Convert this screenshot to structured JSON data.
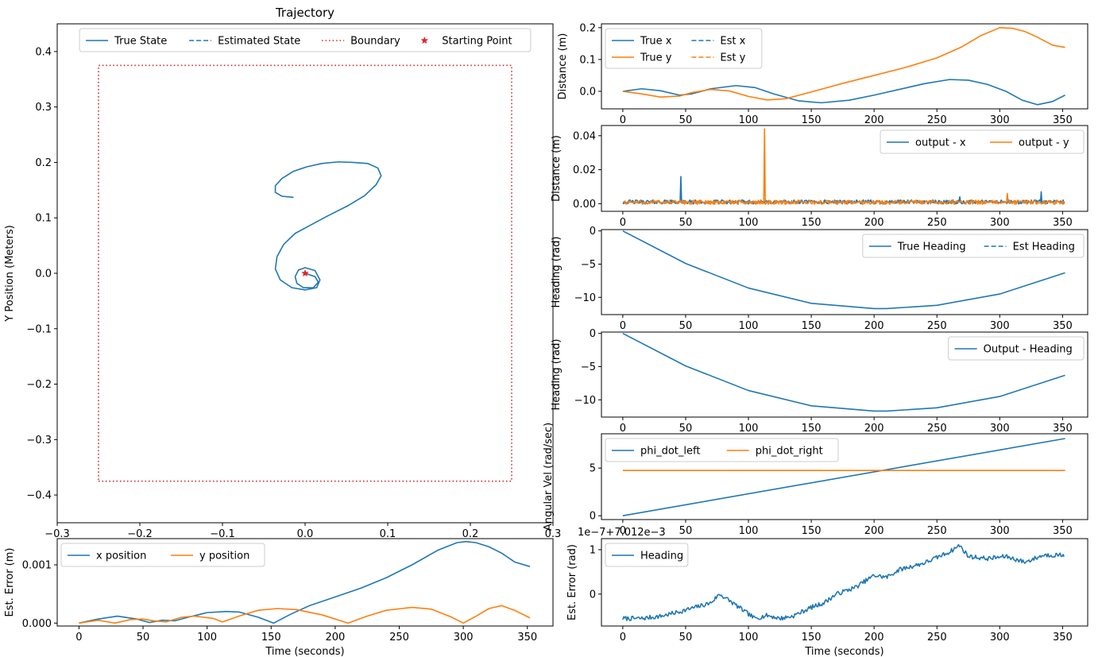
{
  "colors": {
    "blue": "#1f77b4",
    "orange": "#ff7f0e",
    "red": "#d62728",
    "star": "#e3242b"
  },
  "chart_data": [
    {
      "id": "trajectory",
      "type": "line",
      "title": "Trajectory",
      "xlabel": "",
      "ylabel": "Y Position (Meters)",
      "xlim": [
        -0.3,
        0.3
      ],
      "ylim": [
        -0.45,
        0.45
      ],
      "xticks": [
        -0.3,
        -0.2,
        -0.1,
        0.0,
        0.1,
        0.2,
        0.3
      ],
      "xtick_labels": [
        "−0.3",
        "−0.2",
        "−0.1",
        "0.0",
        "0.1",
        "0.2",
        "0.3"
      ],
      "yticks": [
        -0.4,
        -0.3,
        -0.2,
        -0.1,
        0.0,
        0.1,
        0.2,
        0.3,
        0.4
      ],
      "ytick_labels": [
        "−0.4",
        "−0.3",
        "−0.2",
        "−0.1",
        "0.0",
        "0.1",
        "0.2",
        "0.3",
        "0.4"
      ],
      "legend_loc": "top",
      "legend": [
        {
          "label": "True State",
          "style": "solid",
          "color": "#1f77b4"
        },
        {
          "label": "Estimated State",
          "style": "dashed",
          "color": "#1f77b4"
        },
        {
          "label": "Boundary",
          "style": "dotted",
          "color": "#d62728"
        },
        {
          "label": "Starting Point",
          "style": "star",
          "color": "#e3242b"
        }
      ],
      "series": [
        {
          "name": "True State",
          "color": "#1f77b4",
          "style": "solid",
          "x": [
            0.0,
            0.012,
            0.016,
            0.01,
            -0.002,
            -0.01,
            -0.012,
            -0.008,
            0.0,
            0.012,
            0.018,
            0.014,
            0.0,
            -0.016,
            -0.03,
            -0.036,
            -0.034,
            -0.026,
            -0.012,
            0.008,
            0.028,
            0.052,
            0.072,
            0.086,
            0.092,
            0.088,
            0.076,
            0.058,
            0.04,
            0.02,
            0.002,
            -0.014,
            -0.028,
            -0.036,
            -0.036,
            -0.028,
            -0.014
          ],
          "y": [
            0.0,
            -0.006,
            -0.016,
            -0.026,
            -0.026,
            -0.018,
            -0.006,
            0.006,
            0.01,
            0.005,
            -0.012,
            -0.026,
            -0.03,
            -0.026,
            -0.012,
            0.008,
            0.03,
            0.052,
            0.072,
            0.088,
            0.104,
            0.122,
            0.14,
            0.16,
            0.176,
            0.19,
            0.198,
            0.2,
            0.201,
            0.198,
            0.192,
            0.184,
            0.171,
            0.158,
            0.146,
            0.139,
            0.137
          ]
        },
        {
          "name": "Boundary",
          "color": "#d62728",
          "style": "dotted",
          "x": [
            -0.25,
            0.25,
            0.25,
            -0.25,
            -0.25
          ],
          "y": [
            -0.375,
            -0.375,
            0.375,
            0.375,
            -0.375
          ]
        }
      ],
      "points": [
        {
          "name": "Starting Point",
          "x": 0.0,
          "y": 0.0,
          "marker": "star",
          "color": "#e3242b"
        }
      ]
    },
    {
      "id": "est-error-xy",
      "type": "line",
      "xlabel": "Time (seconds)",
      "ylabel": "Est. Error (m)",
      "xlim": [
        -17,
        370
      ],
      "ylim": [
        -5e-05,
        0.00145
      ],
      "xticks": [
        0,
        50,
        100,
        150,
        200,
        250,
        300,
        350
      ],
      "xtick_labels": [
        "0",
        "50",
        "100",
        "150",
        "200",
        "250",
        "300",
        "350"
      ],
      "yticks": [
        0.0,
        0.001
      ],
      "ytick_labels": [
        "0.000",
        "0.001"
      ],
      "legend_loc": "upper-left",
      "legend": [
        {
          "label": "x position",
          "style": "solid",
          "color": "#1f77b4"
        },
        {
          "label": "y position",
          "style": "solid",
          "color": "#ff7f0e"
        }
      ],
      "series": [
        {
          "name": "x position",
          "color": "#1f77b4",
          "x": [
            0,
            15,
            30,
            45,
            55,
            65,
            75,
            85,
            100,
            115,
            125,
            140,
            152,
            165,
            180,
            200,
            220,
            240,
            260,
            280,
            295,
            302,
            310,
            320,
            330,
            340,
            352
          ],
          "y": [
            0.0,
            7e-05,
            0.00012,
            7e-05,
            1e-05,
            5e-05,
            4e-05,
            0.0001,
            0.00018,
            0.0002,
            0.00019,
            0.0001,
            0.0,
            0.00015,
            0.0003,
            0.00045,
            0.0006,
            0.00078,
            0.001,
            0.00125,
            0.00138,
            0.0014,
            0.00138,
            0.00131,
            0.0012,
            0.00105,
            0.00097
          ]
        },
        {
          "name": "y position",
          "color": "#ff7f0e",
          "x": [
            0,
            15,
            28,
            40,
            50,
            58,
            68,
            80,
            90,
            105,
            112,
            125,
            140,
            155,
            170,
            190,
            210,
            225,
            240,
            260,
            275,
            290,
            300,
            310,
            320,
            330,
            340,
            352
          ],
          "y": [
            0.0,
            5e-05,
            0.0,
            6e-05,
            7e-05,
            4e-05,
            2e-05,
            0.0001,
            0.00012,
            8e-05,
            2e-05,
            0.00012,
            0.00022,
            0.00025,
            0.00023,
            0.00014,
            0.0,
            0.00012,
            0.00022,
            0.00027,
            0.00024,
            0.00011,
            0.0,
            0.00012,
            0.00025,
            0.0003,
            0.00022,
            9e-05
          ]
        }
      ]
    },
    {
      "id": "distance-true-est",
      "type": "line",
      "xlabel": "",
      "ylabel": "Distance (m)",
      "xlim": [
        -17,
        370
      ],
      "ylim": [
        -0.055,
        0.212
      ],
      "xticks": [
        0,
        50,
        100,
        150,
        200,
        250,
        300,
        350
      ],
      "xtick_labels": [
        "0",
        "50",
        "100",
        "150",
        "200",
        "250",
        "300",
        "350"
      ],
      "yticks": [
        0.0,
        0.1,
        0.2
      ],
      "ytick_labels": [
        "0.0",
        "0.1",
        "0.2"
      ],
      "legend_loc": "upper-left",
      "legend": [
        {
          "label": "True x",
          "style": "solid",
          "color": "#1f77b4"
        },
        {
          "label": "Est x",
          "style": "dashed",
          "color": "#1f77b4"
        },
        {
          "label": "True y",
          "style": "solid",
          "color": "#ff7f0e"
        },
        {
          "label": "Est y",
          "style": "dashed",
          "color": "#ff7f0e"
        }
      ],
      "series": [
        {
          "name": "True x",
          "color": "#1f77b4",
          "x": [
            0,
            15,
            30,
            45,
            55,
            70,
            90,
            105,
            120,
            140,
            158,
            180,
            200,
            220,
            240,
            260,
            275,
            290,
            305,
            318,
            330,
            342,
            352
          ],
          "y": [
            0.0,
            0.008,
            0.002,
            -0.012,
            -0.008,
            0.008,
            0.018,
            0.012,
            -0.008,
            -0.03,
            -0.036,
            -0.028,
            -0.012,
            0.006,
            0.024,
            0.037,
            0.035,
            0.022,
            0.0,
            -0.028,
            -0.042,
            -0.032,
            -0.012
          ]
        },
        {
          "name": "True y",
          "color": "#ff7f0e",
          "x": [
            0,
            15,
            30,
            45,
            55,
            70,
            85,
            100,
            115,
            130,
            150,
            175,
            200,
            225,
            250,
            270,
            285,
            300,
            310,
            320,
            330,
            342,
            352
          ],
          "y": [
            0.0,
            -0.008,
            -0.018,
            -0.015,
            -0.004,
            0.006,
            0.001,
            -0.016,
            -0.027,
            -0.023,
            -0.002,
            0.025,
            0.05,
            0.075,
            0.105,
            0.14,
            0.175,
            0.2,
            0.198,
            0.188,
            0.17,
            0.145,
            0.138
          ]
        }
      ]
    },
    {
      "id": "distance-output",
      "type": "line",
      "xlabel": "",
      "ylabel": "Distance (m)",
      "xlim": [
        -17,
        370
      ],
      "ylim": [
        -0.0045,
        0.046
      ],
      "xticks": [
        0,
        50,
        100,
        150,
        200,
        250,
        300,
        350
      ],
      "xtick_labels": [
        "0",
        "50",
        "100",
        "150",
        "200",
        "250",
        "300",
        "350"
      ],
      "yticks": [
        0.0,
        0.02,
        0.04
      ],
      "ytick_labels": [
        "0.00",
        "0.02",
        "0.04"
      ],
      "legend_loc": "upper-right",
      "legend": [
        {
          "label": "output - x",
          "style": "solid",
          "color": "#1f77b4"
        },
        {
          "label": "output - y",
          "style": "solid",
          "color": "#ff7f0e"
        }
      ],
      "noise": {
        "x_amplitude": 0.0012,
        "y_amplitude": 0.0012,
        "x_offset": 0.001,
        "y_offset": 0.0008
      },
      "spikes": [
        {
          "series": "output - x",
          "x": 46,
          "y": 0.016
        },
        {
          "series": "output - y",
          "x": 113,
          "y": 0.044
        },
        {
          "series": "output - x",
          "x": 268,
          "y": 0.004
        },
        {
          "series": "output - y",
          "x": 306,
          "y": 0.006
        },
        {
          "series": "output - x",
          "x": 333,
          "y": 0.007
        }
      ],
      "series": [
        {
          "name": "output - x",
          "color": "#1f77b4"
        },
        {
          "name": "output - y",
          "color": "#ff7f0e"
        }
      ]
    },
    {
      "id": "heading-true-est",
      "type": "line",
      "xlabel": "",
      "ylabel": "Heading (rad)",
      "xlim": [
        -17,
        370
      ],
      "ylim": [
        -12.6,
        0.2
      ],
      "xticks": [
        0,
        50,
        100,
        150,
        200,
        250,
        300,
        350
      ],
      "xtick_labels": [
        "0",
        "50",
        "100",
        "150",
        "200",
        "250",
        "300",
        "350"
      ],
      "yticks": [
        -10,
        -5,
        0
      ],
      "ytick_labels": [
        "−10",
        "−5",
        "0"
      ],
      "legend_loc": "upper-right",
      "legend": [
        {
          "label": "True Heading",
          "style": "solid",
          "color": "#1f77b4"
        },
        {
          "label": "Est Heading",
          "style": "dashed",
          "color": "#1f77b4"
        }
      ],
      "series": [
        {
          "name": "True Heading",
          "color": "#1f77b4",
          "x": [
            0,
            50,
            100,
            150,
            200,
            210,
            250,
            300,
            352
          ],
          "y": [
            0.0,
            -4.9,
            -8.6,
            -10.9,
            -11.7,
            -11.7,
            -11.2,
            -9.5,
            -6.3
          ]
        }
      ]
    },
    {
      "id": "heading-output",
      "type": "line",
      "xlabel": "",
      "ylabel": "Heading (rad)",
      "xlim": [
        -17,
        370
      ],
      "ylim": [
        -12.6,
        0.2
      ],
      "xticks": [
        0,
        50,
        100,
        150,
        200,
        250,
        300,
        350
      ],
      "xtick_labels": [
        "0",
        "50",
        "100",
        "150",
        "200",
        "250",
        "300",
        "350"
      ],
      "yticks": [
        -10,
        -5,
        0
      ],
      "ytick_labels": [
        "−10",
        "−5",
        "0"
      ],
      "legend_loc": "upper-right",
      "legend": [
        {
          "label": "Output - Heading",
          "style": "solid",
          "color": "#1f77b4"
        }
      ],
      "series": [
        {
          "name": "Output - Heading",
          "color": "#1f77b4",
          "x": [
            0,
            50,
            100,
            150,
            200,
            210,
            250,
            300,
            352
          ],
          "y": [
            0.0,
            -4.9,
            -8.6,
            -10.9,
            -11.7,
            -11.7,
            -11.2,
            -9.5,
            -6.3
          ]
        }
      ]
    },
    {
      "id": "angular-velocity",
      "type": "line",
      "xlabel": "",
      "ylabel": "Angular Vel (rad/sec)",
      "xlim": [
        -17,
        370
      ],
      "ylim": [
        -0.4,
        8.6
      ],
      "xticks": [
        0,
        50,
        100,
        150,
        200,
        250,
        300,
        350
      ],
      "xtick_labels": [
        "0",
        "50",
        "100",
        "150",
        "200",
        "250",
        "300",
        "350"
      ],
      "yticks": [
        0,
        5
      ],
      "ytick_labels": [
        "0",
        "5"
      ],
      "legend_loc": "upper-left",
      "legend": [
        {
          "label": "phi_dot_left",
          "style": "solid",
          "color": "#1f77b4"
        },
        {
          "label": "phi_dot_right",
          "style": "solid",
          "color": "#ff7f0e"
        }
      ],
      "series": [
        {
          "name": "phi_dot_left",
          "color": "#1f77b4",
          "x": [
            0,
            352
          ],
          "y": [
            0.0,
            8.1
          ]
        },
        {
          "name": "phi_dot_right",
          "color": "#ff7f0e",
          "x": [
            0,
            352
          ],
          "y": [
            4.75,
            4.75
          ]
        }
      ]
    },
    {
      "id": "heading-est-error",
      "type": "line",
      "xlabel": "Time (seconds)",
      "ylabel": "Est. Error (rad)",
      "offset_text": "1e−7+7.012e−3",
      "xlim": [
        -17,
        370
      ],
      "ylim": [
        -0.72,
        1.25
      ],
      "xticks": [
        0,
        50,
        100,
        150,
        200,
        250,
        300,
        350
      ],
      "xtick_labels": [
        "0",
        "50",
        "100",
        "150",
        "200",
        "250",
        "300",
        "350"
      ],
      "yticks": [
        0,
        1
      ],
      "ytick_labels": [
        "0",
        "1"
      ],
      "legend_loc": "upper-left",
      "legend": [
        {
          "label": "Heading",
          "style": "solid",
          "color": "#1f77b4"
        }
      ],
      "noise_amplitude": 0.05,
      "series": [
        {
          "name": "Heading",
          "color": "#1f77b4",
          "x": [
            0,
            15,
            30,
            45,
            60,
            70,
            77,
            85,
            95,
            105,
            115,
            125,
            135,
            150,
            160,
            170,
            185,
            200,
            210,
            220,
            240,
            260,
            268,
            275,
            290,
            305,
            320,
            335,
            352
          ],
          "y": [
            -0.55,
            -0.55,
            -0.5,
            -0.4,
            -0.28,
            -0.2,
            0.0,
            -0.15,
            -0.35,
            -0.55,
            -0.48,
            -0.55,
            -0.5,
            -0.3,
            -0.2,
            0.0,
            0.15,
            0.42,
            0.38,
            0.55,
            0.7,
            0.95,
            1.1,
            0.85,
            0.8,
            0.85,
            0.72,
            0.88,
            0.88
          ]
        }
      ]
    }
  ]
}
